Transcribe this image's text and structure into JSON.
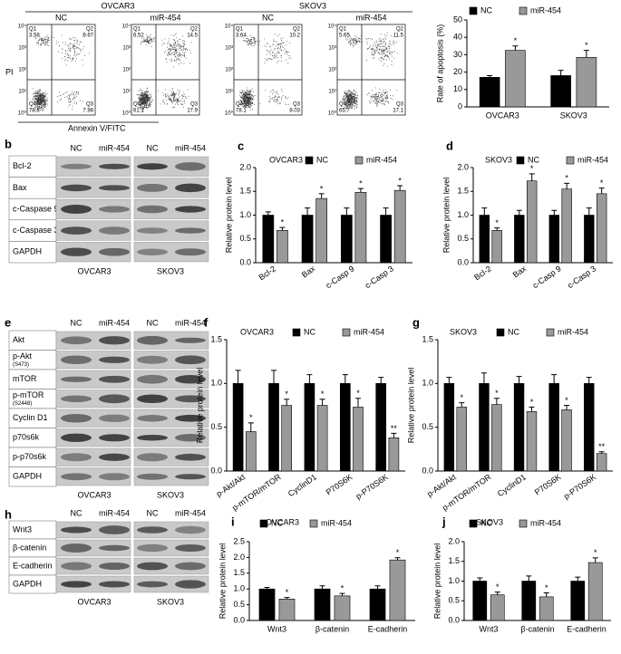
{
  "chart_data": [
    {
      "type": "bar",
      "panel": "a",
      "ylabel": "Rate of apoptosis (%)",
      "categories": [
        "OVCAR3",
        "SKOV3"
      ],
      "series": [
        {
          "name": "NC",
          "color": "#000000",
          "values": [
            17,
            18
          ],
          "errors": [
            1,
            3
          ]
        },
        {
          "name": "miR-454",
          "color": "#999999",
          "values": [
            32.5,
            28.5
          ],
          "errors": [
            2.5,
            4
          ],
          "annotations": [
            "*",
            "*"
          ]
        }
      ],
      "ylim": [
        0,
        50
      ],
      "yticks": [
        0,
        10,
        20,
        30,
        40,
        50
      ]
    },
    {
      "type": "bar",
      "panel": "c",
      "title": "OVCAR3",
      "ylabel": "Relative protein level",
      "categories": [
        "Bcl-2",
        "Bax",
        "c-Casp 9",
        "c-Casp 3"
      ],
      "series": [
        {
          "name": "NC",
          "color": "#000000",
          "values": [
            1,
            1,
            1,
            1
          ],
          "errors": [
            0.07,
            0.15,
            0.15,
            0.15
          ]
        },
        {
          "name": "miR-454",
          "color": "#999999",
          "values": [
            0.68,
            1.35,
            1.48,
            1.52
          ],
          "errors": [
            0.06,
            0.1,
            0.08,
            0.1
          ],
          "annotations": [
            "*",
            "*",
            "*",
            "*"
          ]
        }
      ],
      "ylim": [
        0,
        2
      ],
      "yticks": [
        {
          "value": 0,
          "label": "0.0"
        },
        0.5,
        {
          "value": 1,
          "label": "1.0"
        },
        1.5,
        {
          "value": 2,
          "label": "2.0"
        }
      ]
    },
    {
      "type": "bar",
      "panel": "d",
      "title": "SKOV3",
      "ylabel": "Relative protein level",
      "categories": [
        "Bcl-2",
        "Bax",
        "c-Casp 9",
        "c-Casp 3"
      ],
      "series": [
        {
          "name": "NC",
          "color": "#000000",
          "values": [
            1,
            1,
            1,
            1
          ],
          "errors": [
            0.15,
            0.1,
            0.1,
            0.15
          ]
        },
        {
          "name": "miR-454",
          "color": "#999999",
          "values": [
            0.68,
            1.72,
            1.55,
            1.45
          ],
          "errors": [
            0.05,
            0.15,
            0.12,
            0.12
          ],
          "annotations": [
            "*",
            "*",
            "*",
            "*"
          ]
        }
      ],
      "ylim": [
        0,
        2
      ],
      "yticks": [
        {
          "value": 0,
          "label": "0.0"
        },
        0.5,
        {
          "value": 1,
          "label": "1.0"
        },
        1.5,
        {
          "value": 2,
          "label": "2.0"
        }
      ]
    },
    {
      "type": "bar",
      "panel": "f",
      "title": "OVCAR3",
      "ylabel": "Relative protein level",
      "categories": [
        "p-Akt/Akt",
        "p-mTOR/mTOR",
        "CyclinD1",
        "P70S6K",
        "p-P70S6K"
      ],
      "series": [
        {
          "name": "NC",
          "color": "#000000",
          "values": [
            1,
            1,
            1,
            1,
            1
          ],
          "errors": [
            0.15,
            0.15,
            0.1,
            0.1,
            0.07
          ]
        },
        {
          "name": "miR-454",
          "color": "#999999",
          "values": [
            0.45,
            0.75,
            0.75,
            0.73,
            0.38
          ],
          "errors": [
            0.1,
            0.07,
            0.07,
            0.1,
            0.05
          ],
          "annotations": [
            "*",
            "*",
            "*",
            "*",
            "**"
          ]
        }
      ],
      "ylim": [
        0,
        1.5
      ],
      "yticks": [
        {
          "value": 0,
          "label": "0.0"
        },
        0.5,
        {
          "value": 1,
          "label": "1.0"
        },
        1.5
      ]
    },
    {
      "type": "bar",
      "panel": "g",
      "title": "SKOV3",
      "ylabel": "Relative protein level",
      "categories": [
        "p-Akt/Akt",
        "p-mTOR/mTOR",
        "CyclinD1",
        "P70S6K",
        "p-P70S6K"
      ],
      "series": [
        {
          "name": "NC",
          "color": "#000000",
          "values": [
            1,
            1,
            1,
            1,
            1
          ],
          "errors": [
            0.07,
            0.12,
            0.08,
            0.1,
            0.07
          ]
        },
        {
          "name": "miR-454",
          "color": "#999999",
          "values": [
            0.73,
            0.76,
            0.68,
            0.7,
            0.2
          ],
          "errors": [
            0.05,
            0.07,
            0.05,
            0.05,
            0.02
          ],
          "annotations": [
            "*",
            "*",
            "*",
            "*",
            "**"
          ]
        }
      ],
      "ylim": [
        0,
        1.5
      ],
      "yticks": [
        {
          "value": 0,
          "label": "0.0"
        },
        0.5,
        {
          "value": 1,
          "label": "1.0"
        },
        1.5
      ]
    },
    {
      "type": "bar",
      "panel": "i",
      "title": "OVCAR3",
      "ylabel": "Relative protein level",
      "categories": [
        "Wnt3",
        "β-catenin",
        "E-cadherin"
      ],
      "series": [
        {
          "name": "NC",
          "color": "#000000",
          "values": [
            1,
            1,
            1
          ],
          "errors": [
            0.05,
            0.1,
            0.1
          ]
        },
        {
          "name": "miR-454",
          "color": "#999999",
          "values": [
            0.68,
            0.78,
            1.92
          ],
          "errors": [
            0.05,
            0.08,
            0.07
          ],
          "annotations": [
            "*",
            "*",
            "*"
          ]
        }
      ],
      "ylim": [
        0,
        2.5
      ],
      "yticks": [
        {
          "value": 0,
          "label": "0.0"
        },
        0.5,
        {
          "value": 1,
          "label": "1.0"
        },
        1.5,
        {
          "value": 2,
          "label": "2.0"
        },
        2.5
      ]
    },
    {
      "type": "bar",
      "panel": "j",
      "title": "SKOV3",
      "ylabel": "Relative protein level",
      "categories": [
        "Wnt3",
        "β-catenin",
        "E-cadherin"
      ],
      "series": [
        {
          "name": "NC",
          "color": "#000000",
          "values": [
            1,
            1,
            1
          ],
          "errors": [
            0.08,
            0.13,
            0.1
          ]
        },
        {
          "name": "miR-454",
          "color": "#999999",
          "values": [
            0.65,
            0.6,
            1.47
          ],
          "errors": [
            0.07,
            0.1,
            0.12
          ],
          "annotations": [
            "*",
            "*",
            "*"
          ]
        }
      ],
      "ylim": [
        0,
        2
      ],
      "yticks": [
        {
          "value": 0,
          "label": "0.0"
        },
        0.5,
        {
          "value": 1,
          "label": "1.0"
        },
        1.5,
        {
          "value": 2,
          "label": "2.0"
        }
      ]
    }
  ],
  "flow": {
    "groups": [
      "OVCAR3",
      "SKOV3"
    ],
    "y_label": "PI",
    "x_label": "Annexin V/FITC",
    "axis_ticks": [
      "10⁰",
      "10¹",
      "10²",
      "10³",
      "10⁴"
    ],
    "plots": [
      {
        "header": "NC",
        "quadrants": [
          {
            "name": "Q1",
            "value": 3.58
          },
          {
            "name": "Q2",
            "value": 9.67
          },
          {
            "name": "Q3",
            "value": 7.98
          },
          {
            "name": "Q4",
            "value": 78.8
          }
        ]
      },
      {
        "header": "miR-454",
        "quadrants": [
          {
            "name": "Q1",
            "value": 6.52
          },
          {
            "name": "Q2",
            "value": 14.5
          },
          {
            "name": "Q3",
            "value": 17.9
          },
          {
            "name": "Q4",
            "value": 61.1
          }
        ]
      },
      {
        "header": "NC",
        "quadrants": [
          {
            "name": "Q1",
            "value": 3.64
          },
          {
            "name": "Q2",
            "value": 10.2
          },
          {
            "name": "Q3",
            "value": 8.03
          },
          {
            "name": "Q4",
            "value": 78.1
          }
        ]
      },
      {
        "header": "miR-454",
        "quadrants": [
          {
            "name": "Q1",
            "value": 5.65
          },
          {
            "name": "Q2",
            "value": 11.5
          },
          {
            "name": "Q3",
            "value": 17.1
          },
          {
            "name": "Q4",
            "value": 65.7
          }
        ]
      }
    ]
  },
  "blots": [
    {
      "panel": "b",
      "lanes": [
        "NC",
        "miR-454",
        "NC",
        "miR-454"
      ],
      "cell_lines": [
        "OVCAR3",
        "SKOV3"
      ],
      "rows": [
        {
          "label": "Bcl-2"
        },
        {
          "label": "Bax"
        },
        {
          "label": "c-Caspase 9"
        },
        {
          "label": "c-Caspase 3"
        },
        {
          "label": "GAPDH"
        }
      ]
    },
    {
      "panel": "e",
      "lanes": [
        "NC",
        "miR-454",
        "NC",
        "miR-454"
      ],
      "cell_lines": [
        "OVCAR3",
        "SKOV3"
      ],
      "rows": [
        {
          "label": "Akt"
        },
        {
          "label": "p-Akt",
          "sub": "(S473)"
        },
        {
          "label": "mTOR"
        },
        {
          "label": "p-mTOR",
          "sub": "(S2448)"
        },
        {
          "label": "Cyclin D1"
        },
        {
          "label": "p70s6k"
        },
        {
          "label": "p-p70s6k"
        },
        {
          "label": "GAPDH"
        }
      ]
    },
    {
      "panel": "h",
      "lanes": [
        "NC",
        "miR-454",
        "NC",
        "miR-454"
      ],
      "cell_lines": [
        "OVCAR3",
        "SKOV3"
      ],
      "rows": [
        {
          "label": "Wnt3"
        },
        {
          "label": "β-catenin"
        },
        {
          "label": "E-cadherin"
        },
        {
          "label": "GAPDH"
        }
      ]
    }
  ]
}
